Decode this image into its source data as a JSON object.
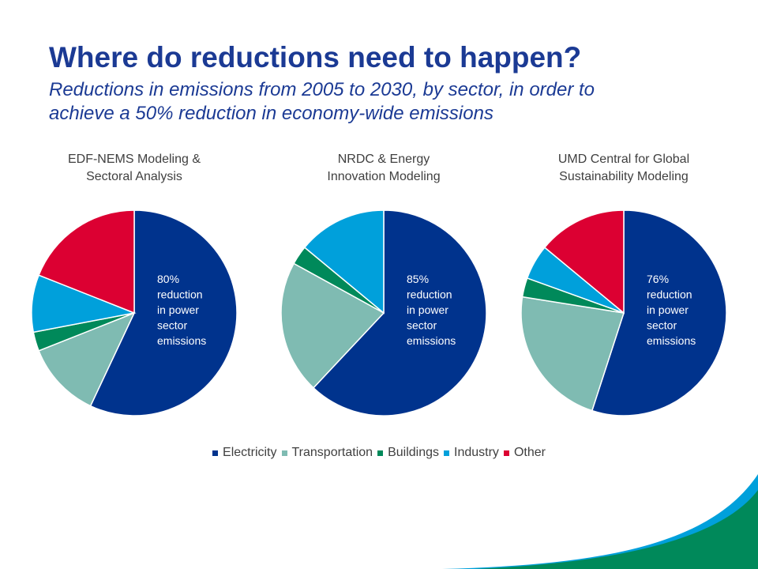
{
  "title": "Where do reductions need to happen?",
  "subtitle": [
    "Reductions in emissions from 2005 to 2030, by sector, in order to",
    "achieve a 50% reduction in economy-wide emissions"
  ],
  "chart_data": [
    {
      "type": "pie",
      "title": [
        "EDF-NEMS Modeling &",
        "Sectoral Analysis"
      ],
      "categories": [
        "Electricity",
        "Transportation",
        "Buildings",
        "Industry",
        "Other"
      ],
      "values": [
        57,
        12,
        3,
        9,
        19
      ],
      "colors": [
        "#00338d",
        "#7fbbb2",
        "#00895a",
        "#00a0db",
        "#dc0032"
      ],
      "annotation": [
        "80%",
        "reduction",
        "in power",
        "sector",
        "emissions"
      ]
    },
    {
      "type": "pie",
      "title": [
        "NRDC & Energy",
        "Innovation Modeling"
      ],
      "categories": [
        "Electricity",
        "Transportation",
        "Buildings",
        "Industry",
        "Other"
      ],
      "values": [
        62,
        21,
        3,
        14,
        0
      ],
      "colors": [
        "#00338d",
        "#7fbbb2",
        "#00895a",
        "#00a0db",
        "#dc0032"
      ],
      "annotation": [
        "85%",
        "reduction",
        "in power",
        "sector",
        "emissions"
      ]
    },
    {
      "type": "pie",
      "title": [
        "UMD Central for Global",
        "Sustainability Modeling"
      ],
      "categories": [
        "Electricity",
        "Transportation",
        "Buildings",
        "Industry",
        "Other"
      ],
      "values": [
        55,
        22.5,
        3,
        5.5,
        14
      ],
      "colors": [
        "#00338d",
        "#7fbbb2",
        "#00895a",
        "#00a0db",
        "#dc0032"
      ],
      "annotation": [
        "76%",
        "reduction",
        "in power",
        "sector",
        "emissions"
      ]
    }
  ]
}
